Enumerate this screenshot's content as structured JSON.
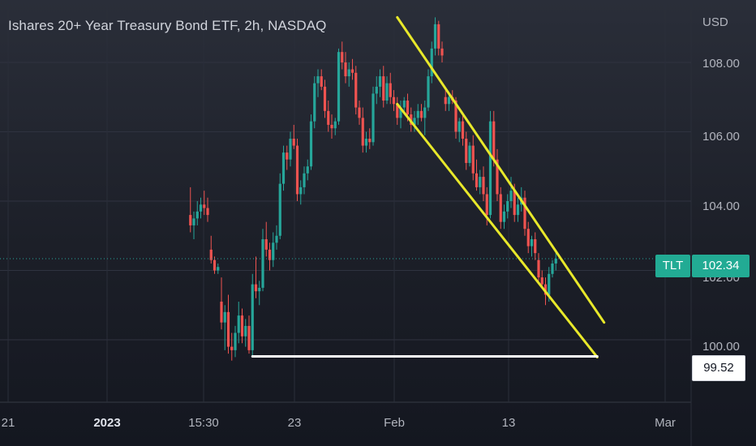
{
  "chart_data": {
    "type": "candlestick",
    "title": "Ishares 20+ Year Treasury Bond ETF, 2h, NASDAQ",
    "symbol": "TLT",
    "currency": "USD",
    "last_price": 102.34,
    "last_price_label": "102.34",
    "support_level": 99.52,
    "support_label": "99.52",
    "y_ticks": [
      "108.00",
      "106.00",
      "104.00",
      "102.00",
      "100.00"
    ],
    "y_tick_values": [
      108,
      106,
      104,
      102,
      100
    ],
    "ylim": [
      98.2,
      109.8
    ],
    "x_ticks": [
      "21",
      "2023",
      "15:30",
      "23",
      "Feb",
      "13",
      "Mar"
    ],
    "x_tick_bold": [
      "2023"
    ],
    "colors": {
      "up": "#26a69a",
      "down": "#ef5350",
      "channel": "#e8e82a",
      "support": "#ffffff",
      "price_line": "#26a69a",
      "badge": "#22ab94"
    },
    "channel_upper": [
      [
        1,
        109.3
      ],
      [
        61,
        100.5
      ]
    ],
    "channel_lower": [
      [
        1,
        106.8
      ],
      [
        59,
        99.5
      ]
    ],
    "support_line": [
      [
        -41,
        99.52
      ],
      [
        59,
        99.52
      ]
    ],
    "candles_start_index": -59,
    "candles": [
      [
        103.6,
        104.4,
        103.1,
        103.3
      ],
      [
        103.3,
        103.7,
        102.9,
        103.5
      ],
      [
        103.5,
        104.0,
        103.3,
        103.7
      ],
      [
        103.7,
        104.1,
        103.5,
        103.9
      ],
      [
        103.9,
        104.3,
        103.6,
        103.8
      ],
      [
        103.8,
        104.1,
        103.4,
        103.6
      ],
      [
        102.6,
        103.0,
        102.2,
        102.3
      ],
      [
        102.3,
        102.4,
        101.9,
        102.0
      ],
      [
        102.0,
        102.2,
        101.9,
        102.1
      ],
      [
        101.1,
        101.8,
        100.3,
        100.5
      ],
      [
        100.5,
        101.0,
        99.7,
        100.8
      ],
      [
        100.8,
        101.3,
        99.6,
        99.8
      ],
      [
        99.8,
        100.2,
        99.4,
        99.7
      ],
      [
        99.7,
        100.4,
        99.5,
        100.2
      ],
      [
        100.2,
        101.1,
        99.9,
        100.7
      ],
      [
        100.7,
        100.9,
        99.9,
        100.1
      ],
      [
        100.1,
        100.6,
        99.8,
        100.4
      ],
      [
        100.4,
        100.7,
        99.6,
        99.7
      ],
      [
        99.7,
        101.9,
        99.5,
        101.6
      ],
      [
        101.6,
        102.4,
        101.2,
        101.4
      ],
      [
        101.4,
        101.7,
        101.0,
        101.5
      ],
      [
        101.5,
        103.2,
        101.4,
        102.9
      ],
      [
        102.9,
        103.4,
        102.4,
        102.6
      ],
      [
        102.6,
        102.8,
        102.0,
        102.3
      ],
      [
        102.3,
        103.1,
        102.1,
        102.8
      ],
      [
        102.8,
        103.3,
        102.6,
        103.0
      ],
      [
        103.0,
        104.8,
        102.9,
        104.5
      ],
      [
        104.5,
        105.6,
        104.3,
        105.4
      ],
      [
        105.4,
        105.6,
        104.9,
        105.2
      ],
      [
        105.2,
        106.0,
        105.0,
        105.8
      ],
      [
        105.8,
        106.2,
        105.5,
        105.6
      ],
      [
        105.6,
        105.8,
        104.0,
        104.2
      ],
      [
        104.2,
        104.6,
        103.9,
        104.4
      ],
      [
        104.4,
        105.0,
        104.2,
        104.8
      ],
      [
        104.8,
        105.2,
        104.6,
        105.0
      ],
      [
        105.0,
        106.5,
        104.9,
        106.3
      ],
      [
        106.3,
        107.6,
        106.1,
        107.4
      ],
      [
        107.4,
        107.8,
        107.0,
        107.6
      ],
      [
        107.6,
        107.8,
        107.2,
        107.3
      ],
      [
        107.3,
        107.5,
        106.4,
        106.6
      ],
      [
        106.6,
        106.9,
        106.0,
        106.2
      ],
      [
        106.2,
        106.5,
        105.8,
        106.1
      ],
      [
        106.1,
        106.4,
        105.9,
        106.3
      ],
      [
        106.3,
        108.4,
        106.2,
        108.3
      ],
      [
        108.3,
        108.6,
        107.8,
        108.0
      ],
      [
        108.0,
        108.3,
        107.4,
        107.6
      ],
      [
        107.6,
        108.0,
        107.3,
        107.8
      ],
      [
        107.8,
        108.1,
        107.5,
        107.7
      ],
      [
        107.7,
        107.9,
        106.5,
        106.7
      ],
      [
        106.7,
        106.9,
        106.2,
        106.4
      ],
      [
        106.4,
        106.7,
        105.4,
        105.6
      ],
      [
        105.6,
        106.0,
        105.4,
        105.8
      ],
      [
        105.8,
        106.1,
        105.5,
        105.7
      ],
      [
        105.7,
        107.3,
        105.6,
        107.1
      ],
      [
        107.1,
        107.6,
        106.8,
        107.3
      ],
      [
        107.3,
        107.8,
        107.0,
        107.6
      ],
      [
        107.6,
        107.9,
        106.7,
        106.9
      ],
      [
        106.9,
        107.6,
        106.8,
        107.4
      ],
      [
        107.4,
        107.7,
        106.8,
        107.0
      ],
      [
        107.0,
        107.2,
        106.6,
        106.8
      ],
      [
        106.8,
        107.0,
        106.2,
        106.4
      ],
      [
        106.4,
        106.9,
        106.1,
        106.7
      ],
      [
        106.7,
        107.0,
        106.5,
        106.9
      ],
      [
        106.9,
        107.1,
        106.3,
        106.5
      ],
      [
        106.5,
        106.7,
        106.0,
        106.2
      ],
      [
        106.2,
        106.6,
        106.0,
        106.4
      ],
      [
        106.4,
        106.8,
        106.2,
        106.6
      ],
      [
        106.6,
        106.8,
        106.3,
        106.4
      ],
      [
        106.4,
        106.9,
        105.9,
        106.7
      ],
      [
        106.7,
        107.8,
        106.6,
        107.6
      ],
      [
        107.6,
        108.6,
        107.4,
        108.4
      ],
      [
        108.4,
        109.3,
        108.2,
        109.1
      ],
      [
        109.1,
        109.2,
        108.2,
        108.4
      ],
      [
        108.4,
        108.6,
        108.0,
        108.2
      ],
      [
        107.0,
        107.2,
        106.6,
        106.8
      ],
      [
        106.8,
        107.1,
        106.6,
        107.0
      ],
      [
        107.0,
        107.2,
        106.8,
        106.9
      ],
      [
        106.9,
        107.0,
        105.8,
        106.0
      ],
      [
        106.0,
        106.4,
        105.7,
        106.3
      ],
      [
        106.3,
        106.5,
        105.6,
        105.8
      ],
      [
        105.8,
        106.0,
        104.9,
        105.1
      ],
      [
        105.1,
        105.7,
        105.0,
        105.6
      ],
      [
        105.6,
        105.9,
        104.6,
        104.8
      ],
      [
        104.8,
        105.2,
        104.3,
        104.4
      ],
      [
        104.4,
        104.9,
        104.2,
        104.7
      ],
      [
        104.7,
        105.0,
        104.0,
        104.2
      ],
      [
        104.2,
        104.4,
        103.3,
        103.6
      ],
      [
        103.6,
        106.6,
        103.5,
        106.3
      ],
      [
        106.3,
        106.6,
        105.0,
        105.2
      ],
      [
        105.2,
        105.5,
        104.0,
        104.2
      ],
      [
        104.2,
        104.4,
        103.2,
        103.4
      ],
      [
        103.4,
        103.9,
        103.2,
        103.7
      ],
      [
        103.7,
        104.2,
        103.5,
        104.0
      ],
      [
        104.0,
        104.7,
        103.8,
        104.3
      ],
      [
        104.3,
        104.5,
        103.4,
        103.6
      ],
      [
        103.6,
        104.1,
        103.4,
        103.9
      ],
      [
        103.9,
        104.4,
        103.7,
        104.1
      ],
      [
        104.1,
        104.3,
        103.0,
        103.2
      ],
      [
        103.2,
        103.4,
        102.5,
        102.7
      ],
      [
        102.7,
        103.0,
        102.4,
        102.9
      ],
      [
        102.9,
        103.1,
        102.3,
        102.5
      ],
      [
        102.3,
        102.5,
        101.7,
        101.8
      ],
      [
        101.8,
        102.0,
        101.5,
        101.6
      ],
      [
        101.6,
        101.8,
        101.0,
        101.3
      ],
      [
        101.3,
        102.1,
        101.1,
        101.9
      ],
      [
        101.9,
        102.3,
        101.8,
        102.2
      ],
      [
        102.2,
        102.5,
        102.0,
        102.34
      ]
    ]
  }
}
